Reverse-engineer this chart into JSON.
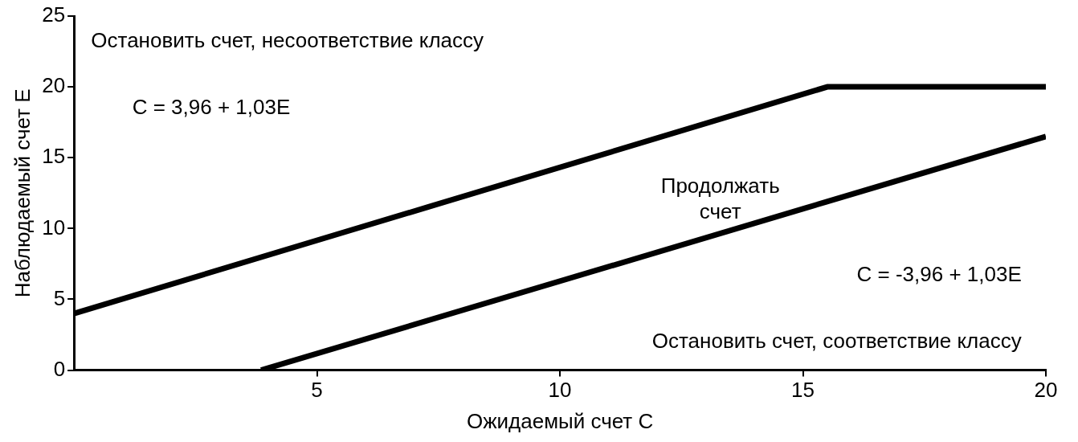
{
  "chart_data": {
    "type": "line",
    "xlabel": "Ожидаемый счет C",
    "ylabel": "Наблюдаемый счет E",
    "series": [
      {
        "color": "#000000",
        "x": [
          0,
          15.5,
          20
        ],
        "values": [
          4,
          20,
          20
        ]
      },
      {
        "color": "#000000",
        "x": [
          3.85,
          20
        ],
        "values": [
          0,
          16.5
        ]
      }
    ],
    "xlim": [
      0,
      20
    ],
    "xticks": [
      5,
      10,
      15,
      20
    ],
    "ylim": [
      0,
      25
    ],
    "yticks": [
      0,
      5,
      10,
      15,
      20,
      25
    ],
    "legend": false,
    "marker": "none",
    "line_style": "solid",
    "annotations": [
      "Остановить счет, несоответствие классу",
      "C = 3,96 + 1,03E",
      "Продолжать счет",
      "C = -3,96 + 1,03E",
      "Остановить счет, соответствие классу"
    ]
  }
}
